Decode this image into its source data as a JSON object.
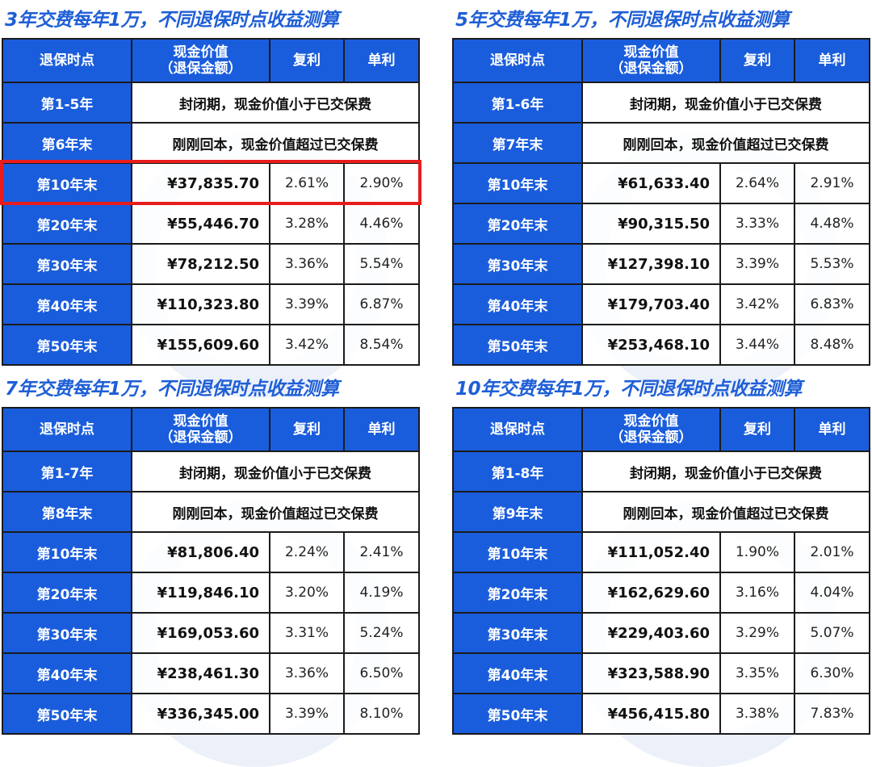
{
  "headers": [
    "退保时点",
    "现金价值",
    "（退保金额）",
    "复利",
    "单利"
  ],
  "tables": [
    {
      "title": "3年交费每年1万，不同退保时点收益测算",
      "closed": {
        "label": "第1-5年",
        "text": "封闭期，现金价值小于已交保费"
      },
      "breakeven": {
        "label": "第6年末",
        "text": "刚刚回本，现金价值超过已交保费"
      },
      "rows": [
        {
          "label": "第10年末",
          "cash": "¥37,835.70",
          "compound": "2.61%",
          "simple": "2.90%",
          "highlighted": true
        },
        {
          "label": "第20年末",
          "cash": "¥55,446.70",
          "compound": "3.28%",
          "simple": "4.46%"
        },
        {
          "label": "第30年末",
          "cash": "¥78,212.50",
          "compound": "3.36%",
          "simple": "5.54%"
        },
        {
          "label": "第40年末",
          "cash": "¥110,323.80",
          "compound": "3.39%",
          "simple": "6.87%"
        },
        {
          "label": "第50年末",
          "cash": "¥155,609.60",
          "compound": "3.42%",
          "simple": "8.54%"
        }
      ]
    },
    {
      "title": "5年交费每年1万，不同退保时点收益测算",
      "closed": {
        "label": "第1-6年",
        "text": "封闭期，现金价值小于已交保费"
      },
      "breakeven": {
        "label": "第7年末",
        "text": "刚刚回本，现金价值超过已交保费"
      },
      "rows": [
        {
          "label": "第10年末",
          "cash": "¥61,633.40",
          "compound": "2.64%",
          "simple": "2.91%"
        },
        {
          "label": "第20年末",
          "cash": "¥90,315.50",
          "compound": "3.33%",
          "simple": "4.48%"
        },
        {
          "label": "第30年末",
          "cash": "¥127,398.10",
          "compound": "3.39%",
          "simple": "5.53%"
        },
        {
          "label": "第40年末",
          "cash": "¥179,703.40",
          "compound": "3.42%",
          "simple": "6.83%"
        },
        {
          "label": "第50年末",
          "cash": "¥253,468.10",
          "compound": "3.44%",
          "simple": "8.48%"
        }
      ]
    },
    {
      "title": "7年交费每年1万，不同退保时点收益测算",
      "closed": {
        "label": "第1-7年",
        "text": "封闭期，现金价值小于已交保费"
      },
      "breakeven": {
        "label": "第8年末",
        "text": "刚刚回本，现金价值超过已交保费"
      },
      "rows": [
        {
          "label": "第10年末",
          "cash": "¥81,806.40",
          "compound": "2.24%",
          "simple": "2.41%"
        },
        {
          "label": "第20年末",
          "cash": "¥119,846.10",
          "compound": "3.20%",
          "simple": "4.19%"
        },
        {
          "label": "第30年末",
          "cash": "¥169,053.60",
          "compound": "3.31%",
          "simple": "5.24%"
        },
        {
          "label": "第40年末",
          "cash": "¥238,461.30",
          "compound": "3.36%",
          "simple": "6.50%"
        },
        {
          "label": "第50年末",
          "cash": "¥336,345.00",
          "compound": "3.39%",
          "simple": "8.10%"
        }
      ]
    },
    {
      "title": "10年交费每年1万，不同退保时点收益测算",
      "closed": {
        "label": "第1-8年",
        "text": "封闭期，现金价值小于已交保费"
      },
      "breakeven": {
        "label": "第9年末",
        "text": "刚刚回本，现金价值超过已交保费"
      },
      "rows": [
        {
          "label": "第10年末",
          "cash": "¥111,052.40",
          "compound": "1.90%",
          "simple": "2.01%"
        },
        {
          "label": "第20年末",
          "cash": "¥162,629.60",
          "compound": "3.16%",
          "simple": "4.04%"
        },
        {
          "label": "第30年末",
          "cash": "¥229,403.60",
          "compound": "3.29%",
          "simple": "5.07%"
        },
        {
          "label": "第40年末",
          "cash": "¥323,588.90",
          "compound": "3.35%",
          "simple": "6.30%"
        },
        {
          "label": "第50年末",
          "cash": "¥456,415.80",
          "compound": "3.38%",
          "simple": "7.83%"
        }
      ]
    }
  ],
  "colors": {
    "header_bg": "#1a5ddc",
    "title": "#1f5fd6",
    "highlight": "#e81c1c"
  }
}
